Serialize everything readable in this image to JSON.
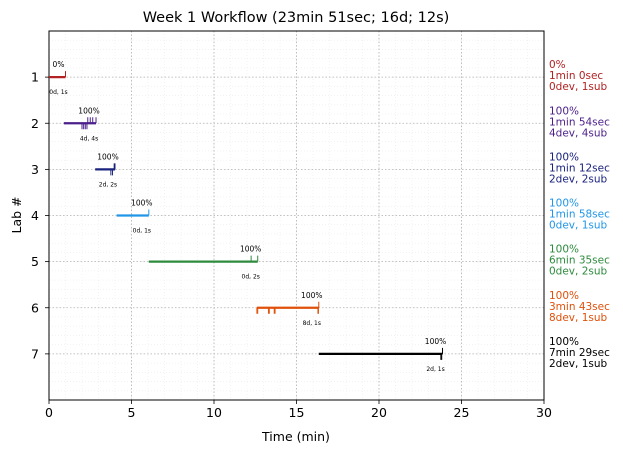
{
  "chart_data": {
    "type": "timeline",
    "title": "Week 1 Workflow (23min 51sec; 16d; 12s)",
    "xlabel": "Time (min)",
    "ylabel": "Lab #",
    "xlim": [
      0,
      30
    ],
    "ylim": [
      8,
      0
    ],
    "xticks": [
      0,
      5,
      10,
      15,
      20,
      25,
      30
    ],
    "yticks": [
      1,
      2,
      3,
      4,
      5,
      6,
      7
    ],
    "grid": true,
    "labs": [
      {
        "lab": 1,
        "start": 0.0,
        "end": 1.0,
        "pct": "0%",
        "ds": "0d, 1s",
        "dev": [],
        "sub": [
          1.0
        ],
        "right": [
          "0%",
          "1min 0sec",
          "0dev, 1sub"
        ],
        "color": "#b22222"
      },
      {
        "lab": 2,
        "start": 0.9,
        "end": 2.85,
        "pct": "100%",
        "ds": "4d, 4s",
        "dev": [
          2.0,
          2.1,
          2.2,
          2.3
        ],
        "sub": [
          2.35,
          2.5,
          2.65,
          2.85
        ],
        "right": [
          "100%",
          "1min 54sec",
          "4dev, 4sub"
        ],
        "color": "#4b1f8a"
      },
      {
        "lab": 3,
        "start": 2.8,
        "end": 4.0,
        "pct": "100%",
        "ds": "2d, 2s",
        "dev": [
          3.75,
          3.85
        ],
        "sub": [
          3.95,
          4.0
        ],
        "right": [
          "100%",
          "1min 12sec",
          "2dev, 2sub"
        ],
        "color": "#1a237e"
      },
      {
        "lab": 4,
        "start": 4.1,
        "end": 6.05,
        "pct": "100%",
        "ds": "0d, 1s",
        "dev": [],
        "sub": [
          6.05
        ],
        "right": [
          "100%",
          "1min 58sec",
          "0dev, 1sub"
        ],
        "color": "#2196e8"
      },
      {
        "lab": 5,
        "start": 6.05,
        "end": 12.65,
        "pct": "100%",
        "ds": "0d, 2s",
        "dev": [],
        "sub": [
          12.25,
          12.65
        ],
        "right": [
          "100%",
          "6min 35sec",
          "0dev, 2sub"
        ],
        "color": "#2e8b3e"
      },
      {
        "lab": 6,
        "start": 12.6,
        "end": 16.35,
        "pct": "100%",
        "ds": "8d, 1s",
        "dev": [
          12.6,
          12.65,
          13.3,
          13.35,
          13.65,
          13.7,
          16.3,
          16.33
        ],
        "sub": [
          16.35
        ],
        "right": [
          "100%",
          "3min 43sec",
          "8dev, 1sub"
        ],
        "color": "#e0500a"
      },
      {
        "lab": 7,
        "start": 16.35,
        "end": 23.85,
        "pct": "100%",
        "ds": "2d, 1s",
        "dev": [
          23.75,
          23.8
        ],
        "sub": [
          23.85
        ],
        "right": [
          "100%",
          "7min 29sec",
          "2dev, 1sub"
        ],
        "color": "#000000"
      }
    ]
  }
}
